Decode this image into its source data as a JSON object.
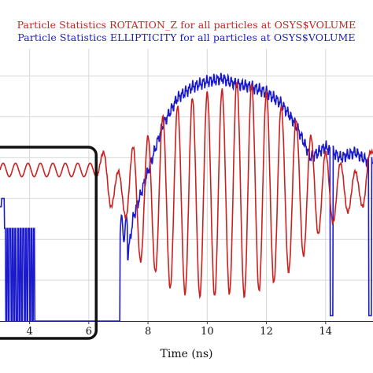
{
  "chart_data": {
    "type": "line",
    "titles": [
      "Particle Statistics ROTATION_Z for all particles at OSYS$VOLUME",
      "Particle Statistics ELLIPTICITY for all particles at OSYS$VOLUME"
    ],
    "xlabel": "Time (ns)",
    "ylabel": "",
    "xlim": [
      3.0,
      15.6
    ],
    "xticks": [
      4,
      6,
      8,
      10,
      12,
      14
    ],
    "grid": true,
    "legend": "none",
    "colors": {
      "red": "#cc2020",
      "blue": "#1a1acc",
      "highlight_box": "#111111"
    },
    "highlight_box": {
      "x_range": [
        3.0,
        6.25
      ],
      "label": ""
    },
    "series": [
      {
        "color": "#cc2020",
        "description_axis": "relative level 0-1 (bottom to top of plot)",
        "x": [
          3.0,
          3.5,
          4.0,
          4.5,
          5.0,
          5.5,
          6.0,
          6.25,
          6.5,
          6.75,
          7.0,
          7.25,
          7.5,
          7.75,
          8.0,
          8.25,
          8.5,
          8.75,
          9.0,
          9.25,
          9.5,
          9.75,
          10.0,
          10.25,
          10.5,
          10.75,
          11.0,
          11.25,
          11.5,
          11.75,
          12.0,
          12.25,
          12.5,
          12.75,
          13.0,
          13.25,
          13.5,
          13.75,
          14.0,
          14.25,
          14.5,
          14.75,
          15.0,
          15.25,
          15.5
        ],
        "y": [
          0.56,
          0.56,
          0.56,
          0.56,
          0.56,
          0.56,
          0.56,
          0.53,
          0.62,
          0.42,
          0.55,
          0.38,
          0.64,
          0.22,
          0.68,
          0.18,
          0.75,
          0.12,
          0.79,
          0.1,
          0.82,
          0.09,
          0.84,
          0.09,
          0.85,
          0.1,
          0.88,
          0.09,
          0.87,
          0.11,
          0.84,
          0.14,
          0.79,
          0.18,
          0.74,
          0.24,
          0.68,
          0.32,
          0.62,
          0.36,
          0.58,
          0.4,
          0.55,
          0.42,
          0.62
        ]
      },
      {
        "color": "#1a1acc",
        "description_axis": "relative level 0-1 (bottom to top of plot)",
        "x": [
          3.0,
          3.5,
          4.0,
          4.5,
          5.0,
          5.5,
          6.0,
          6.5,
          7.0,
          7.5,
          8.0,
          8.5,
          9.0,
          9.5,
          10.0,
          10.5,
          11.0,
          11.5,
          12.0,
          12.5,
          13.0,
          13.5,
          14.0,
          14.5,
          15.0,
          15.5
        ],
        "y": [
          0.0,
          0.42,
          0.0,
          0.0,
          0.0,
          0.0,
          0.0,
          0.0,
          0.0,
          0.38,
          0.55,
          0.72,
          0.82,
          0.86,
          0.88,
          0.89,
          0.87,
          0.86,
          0.84,
          0.8,
          0.72,
          0.6,
          0.64,
          0.6,
          0.62,
          0.58
        ]
      }
    ]
  }
}
